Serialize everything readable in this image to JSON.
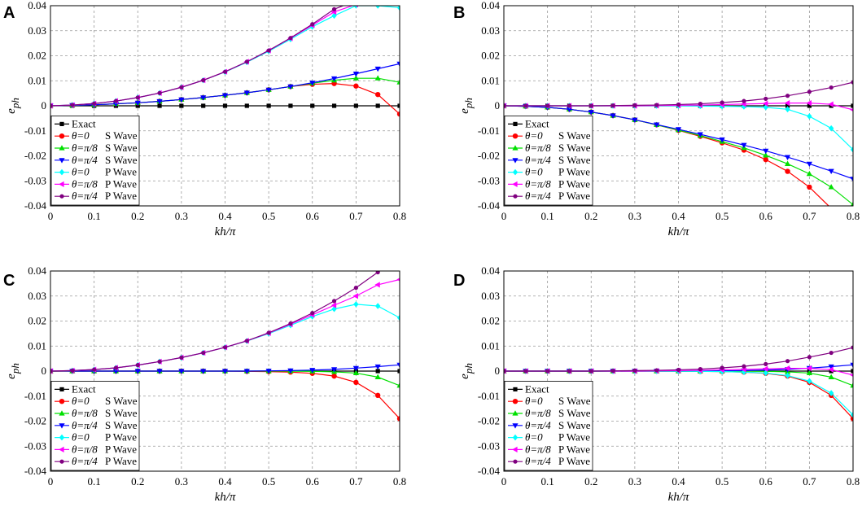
{
  "figure": {
    "legend_labels": [
      {
        "theta": "",
        "type": "",
        "text": "Exact"
      },
      {
        "theta": "θ=0",
        "type": "S Wave"
      },
      {
        "theta": "θ=π/8",
        "type": "S Wave"
      },
      {
        "theta": "θ=π/4",
        "type": "S Wave"
      },
      {
        "theta": "θ=0",
        "type": "P Wave"
      },
      {
        "theta": "θ=π/8",
        "type": "P Wave"
      },
      {
        "theta": "θ=π/4",
        "type": "P Wave"
      }
    ],
    "series_styles": [
      {
        "color": "#000000",
        "marker": "square"
      },
      {
        "color": "#ff0000",
        "marker": "circle"
      },
      {
        "color": "#00e000",
        "marker": "triangle-up"
      },
      {
        "color": "#0000ff",
        "marker": "triangle-down"
      },
      {
        "color": "#00ffff",
        "marker": "diamond"
      },
      {
        "color": "#ff00ff",
        "marker": "triangle-left"
      },
      {
        "color": "#800080",
        "marker": "hexagram"
      }
    ]
  },
  "chart_data": [
    {
      "panel": "A",
      "type": "line",
      "xlabel": "kh/π",
      "ylabel": "e_ph",
      "xlim": [
        0,
        0.8
      ],
      "ylim": [
        -0.04,
        0.04
      ],
      "x_ticks": [
        "0",
        "0.1",
        "0.2",
        "0.3",
        "0.4",
        "0.5",
        "0.6",
        "0.7",
        "0.8"
      ],
      "y_ticks": [
        "-0.04",
        "-0.03",
        "-0.02",
        "-0.01",
        "0",
        "0.01",
        "0.02",
        "0.03",
        "0.04"
      ],
      "grid": true,
      "legend_position": "bottom-left",
      "x": [
        0,
        0.05,
        0.1,
        0.15,
        0.2,
        0.25,
        0.3,
        0.35,
        0.4,
        0.45,
        0.5,
        0.55,
        0.6,
        0.65,
        0.7,
        0.75,
        0.8
      ],
      "series": [
        {
          "name": "Exact",
          "values": [
            0,
            0,
            0,
            0,
            0,
            0,
            0,
            0,
            0,
            0,
            0,
            0,
            0,
            0,
            0,
            0,
            0
          ]
        },
        {
          "name": "θ=0 S Wave",
          "values": [
            0,
            0.0002,
            0.0004,
            0.0008,
            0.0012,
            0.0018,
            0.0025,
            0.0033,
            0.0042,
            0.0052,
            0.0064,
            0.0077,
            0.0086,
            0.0089,
            0.0079,
            0.0045,
            -0.0033
          ]
        },
        {
          "name": "θ=π/8 S Wave",
          "values": [
            0,
            0.0002,
            0.0004,
            0.0008,
            0.0012,
            0.0018,
            0.0025,
            0.0033,
            0.0042,
            0.0052,
            0.0064,
            0.0077,
            0.009,
            0.0102,
            0.011,
            0.011,
            0.0094
          ]
        },
        {
          "name": "θ=π/4 S Wave",
          "values": [
            0,
            0.0002,
            0.0004,
            0.0008,
            0.0012,
            0.0018,
            0.0025,
            0.0033,
            0.0042,
            0.0052,
            0.0064,
            0.0077,
            0.0092,
            0.0109,
            0.0128,
            0.0148,
            0.0168
          ]
        },
        {
          "name": "θ=0 P Wave",
          "values": [
            0,
            0.0003,
            0.0009,
            0.0019,
            0.0033,
            0.0051,
            0.0074,
            0.0102,
            0.0135,
            0.0174,
            0.0218,
            0.0266,
            0.0316,
            0.036,
            0.04,
            0.04,
            0.0392
          ]
        },
        {
          "name": "θ=π/8 P Wave",
          "values": [
            0,
            0.0003,
            0.0009,
            0.0019,
            0.0033,
            0.0051,
            0.0074,
            0.0102,
            0.0136,
            0.0176,
            0.0221,
            0.027,
            0.0322,
            0.0375,
            0.0405,
            0.041,
            0.041
          ]
        },
        {
          "name": "θ=π/4 P Wave",
          "values": [
            0,
            0.0003,
            0.0009,
            0.0019,
            0.0033,
            0.0051,
            0.0074,
            0.0102,
            0.0136,
            0.0176,
            0.0221,
            0.0271,
            0.0326,
            0.0386,
            0.042,
            0.042,
            0.042
          ]
        }
      ]
    },
    {
      "panel": "B",
      "type": "line",
      "xlabel": "kh/π",
      "ylabel": "e_ph",
      "xlim": [
        0,
        0.8
      ],
      "ylim": [
        -0.04,
        0.04
      ],
      "x_ticks": [
        "0",
        "0.1",
        "0.2",
        "0.3",
        "0.4",
        "0.5",
        "0.6",
        "0.7",
        "0.8"
      ],
      "y_ticks": [
        "-0.04",
        "-0.03",
        "-0.02",
        "-0.01",
        "0",
        "0.01",
        "0.02",
        "0.03",
        "0.04"
      ],
      "grid": true,
      "legend_position": "bottom-left",
      "x": [
        0,
        0.05,
        0.1,
        0.15,
        0.2,
        0.25,
        0.3,
        0.35,
        0.4,
        0.45,
        0.5,
        0.55,
        0.6,
        0.65,
        0.7,
        0.75,
        0.8
      ],
      "series": [
        {
          "name": "Exact",
          "values": [
            0,
            0,
            0,
            0,
            0,
            0,
            0,
            0,
            0,
            0,
            0,
            0,
            0,
            0,
            0,
            0,
            0
          ]
        },
        {
          "name": "θ=0 S Wave",
          "values": [
            0,
            -0.0002,
            -0.0006,
            -0.0014,
            -0.0025,
            -0.0039,
            -0.0056,
            -0.0076,
            -0.0098,
            -0.0122,
            -0.0148,
            -0.0177,
            -0.0215,
            -0.0262,
            -0.0325,
            -0.041,
            -0.048
          ]
        },
        {
          "name": "θ=π/8 S Wave",
          "values": [
            0,
            -0.0002,
            -0.0006,
            -0.0014,
            -0.0025,
            -0.0039,
            -0.0056,
            -0.0076,
            -0.0097,
            -0.0119,
            -0.0143,
            -0.0168,
            -0.0198,
            -0.0232,
            -0.0272,
            -0.0325,
            -0.0395
          ]
        },
        {
          "name": "θ=π/4 S Wave",
          "values": [
            0,
            -0.0002,
            -0.0006,
            -0.0014,
            -0.0025,
            -0.0039,
            -0.0056,
            -0.0075,
            -0.0094,
            -0.0114,
            -0.0135,
            -0.0157,
            -0.018,
            -0.0205,
            -0.0232,
            -0.0261,
            -0.0292
          ]
        },
        {
          "name": "θ=0 P Wave",
          "values": [
            0,
            0,
            0,
            0,
            0,
            0,
            0,
            0,
            0,
            -0.0001,
            -0.0002,
            -0.0003,
            -0.0006,
            -0.0014,
            -0.0042,
            -0.009,
            -0.0175
          ]
        },
        {
          "name": "θ=π/8 P Wave",
          "values": [
            0,
            0,
            0,
            0,
            0,
            0,
            0,
            0.0001,
            0.0002,
            0.0003,
            0.0005,
            0.0007,
            0.0009,
            0.0011,
            0.0011,
            0.0006,
            -0.0016
          ]
        },
        {
          "name": "θ=π/4 P Wave",
          "values": [
            0,
            0,
            0,
            0,
            0,
            0.0001,
            0.0002,
            0.0003,
            0.0005,
            0.0008,
            0.0013,
            0.0019,
            0.0028,
            0.004,
            0.0056,
            0.0073,
            0.0094
          ]
        }
      ]
    },
    {
      "panel": "C",
      "type": "line",
      "xlabel": "kh/π",
      "ylabel": "e_ph",
      "xlim": [
        0,
        0.8
      ],
      "ylim": [
        -0.04,
        0.04
      ],
      "x_ticks": [
        "0",
        "0.1",
        "0.2",
        "0.3",
        "0.4",
        "0.5",
        "0.6",
        "0.7",
        "0.8"
      ],
      "y_ticks": [
        "-0.04",
        "-0.03",
        "-0.02",
        "-0.01",
        "0",
        "0.01",
        "0.02",
        "0.03",
        "0.04"
      ],
      "grid": true,
      "legend_position": "bottom-left",
      "x": [
        0,
        0.05,
        0.1,
        0.15,
        0.2,
        0.25,
        0.3,
        0.35,
        0.4,
        0.45,
        0.5,
        0.55,
        0.6,
        0.65,
        0.7,
        0.75,
        0.8
      ],
      "series": [
        {
          "name": "Exact",
          "values": [
            0,
            0,
            0,
            0,
            0,
            0,
            0,
            0,
            0,
            0,
            0,
            0,
            0,
            0,
            0,
            0,
            0
          ]
        },
        {
          "name": "θ=0 S Wave",
          "values": [
            0,
            0,
            0,
            0,
            0,
            0,
            0,
            0,
            0,
            -0.0001,
            -0.0002,
            -0.0004,
            -0.0009,
            -0.002,
            -0.0045,
            -0.0097,
            -0.019
          ]
        },
        {
          "name": "θ=π/8 S Wave",
          "values": [
            0,
            0,
            0,
            0,
            0,
            0,
            0,
            0,
            0,
            0,
            0,
            0,
            -0.0001,
            -0.0003,
            -0.0008,
            -0.0024,
            -0.0058
          ]
        },
        {
          "name": "θ=π/4 S Wave",
          "values": [
            0,
            0,
            0,
            0,
            0,
            0,
            0,
            0,
            0,
            0,
            0.0001,
            0.0002,
            0.0004,
            0.0007,
            0.0012,
            0.0018,
            0.0025
          ]
        },
        {
          "name": "θ=0 P Wave",
          "values": [
            0,
            0.0002,
            0.0006,
            0.0013,
            0.0024,
            0.0038,
            0.0054,
            0.0073,
            0.0095,
            0.012,
            0.015,
            0.0183,
            0.0218,
            0.0248,
            0.0267,
            0.026,
            0.0213
          ]
        },
        {
          "name": "θ=π/8 P Wave",
          "values": [
            0,
            0.0002,
            0.0006,
            0.0013,
            0.0024,
            0.0038,
            0.0054,
            0.0073,
            0.0095,
            0.0121,
            0.0152,
            0.0187,
            0.0225,
            0.0263,
            0.03,
            0.0345,
            0.0366
          ]
        },
        {
          "name": "θ=π/4 P Wave",
          "values": [
            0,
            0.0002,
            0.0006,
            0.0013,
            0.0024,
            0.0038,
            0.0054,
            0.0073,
            0.0095,
            0.0121,
            0.0153,
            0.019,
            0.0232,
            0.028,
            0.0333,
            0.0395,
            0.045
          ]
        }
      ]
    },
    {
      "panel": "D",
      "type": "line",
      "xlabel": "kh/π",
      "ylabel": "e_ph",
      "xlim": [
        0,
        0.8
      ],
      "ylim": [
        -0.04,
        0.04
      ],
      "x_ticks": [
        "0",
        "0.1",
        "0.2",
        "0.3",
        "0.4",
        "0.5",
        "0.6",
        "0.7",
        "0.8"
      ],
      "y_ticks": [
        "-0.04",
        "-0.03",
        "-0.02",
        "-0.01",
        "0",
        "0.01",
        "0.02",
        "0.03",
        "0.04"
      ],
      "grid": true,
      "legend_position": "bottom-left",
      "x": [
        0,
        0.05,
        0.1,
        0.15,
        0.2,
        0.25,
        0.3,
        0.35,
        0.4,
        0.45,
        0.5,
        0.55,
        0.6,
        0.65,
        0.7,
        0.75,
        0.8
      ],
      "series": [
        {
          "name": "Exact",
          "values": [
            0,
            0,
            0,
            0,
            0,
            0,
            0,
            0,
            0,
            0,
            0,
            0,
            0,
            0,
            0,
            0,
            0
          ]
        },
        {
          "name": "θ=0 S Wave",
          "values": [
            0,
            0,
            0,
            0,
            0,
            0,
            0,
            0,
            0,
            -0.0001,
            -0.0002,
            -0.0004,
            -0.0009,
            -0.002,
            -0.0045,
            -0.0097,
            -0.019
          ]
        },
        {
          "name": "θ=π/8 S Wave",
          "values": [
            0,
            0,
            0,
            0,
            0,
            0,
            0,
            0,
            0,
            0,
            0,
            0,
            -0.0001,
            -0.0003,
            -0.0008,
            -0.0024,
            -0.0058
          ]
        },
        {
          "name": "θ=π/4 S Wave",
          "values": [
            0,
            0,
            0,
            0,
            0,
            0,
            0,
            0,
            0,
            0,
            0.0001,
            0.0002,
            0.0004,
            0.0007,
            0.0012,
            0.0018,
            0.0025
          ]
        },
        {
          "name": "θ=0 P Wave",
          "values": [
            0,
            0,
            0,
            0,
            0,
            0,
            0,
            0,
            0,
            -0.0001,
            -0.0002,
            -0.0004,
            -0.0008,
            -0.0018,
            -0.004,
            -0.0088,
            -0.0175
          ]
        },
        {
          "name": "θ=π/8 P Wave",
          "values": [
            0,
            0,
            0,
            0,
            0,
            0,
            0,
            0.0001,
            0.0002,
            0.0003,
            0.0005,
            0.0007,
            0.0009,
            0.0011,
            0.0011,
            0.0006,
            -0.0016
          ]
        },
        {
          "name": "θ=π/4 P Wave",
          "values": [
            0,
            0,
            0,
            0,
            0,
            0.0001,
            0.0002,
            0.0003,
            0.0005,
            0.0008,
            0.0013,
            0.0019,
            0.0028,
            0.004,
            0.0056,
            0.0073,
            0.0094
          ]
        }
      ]
    }
  ]
}
